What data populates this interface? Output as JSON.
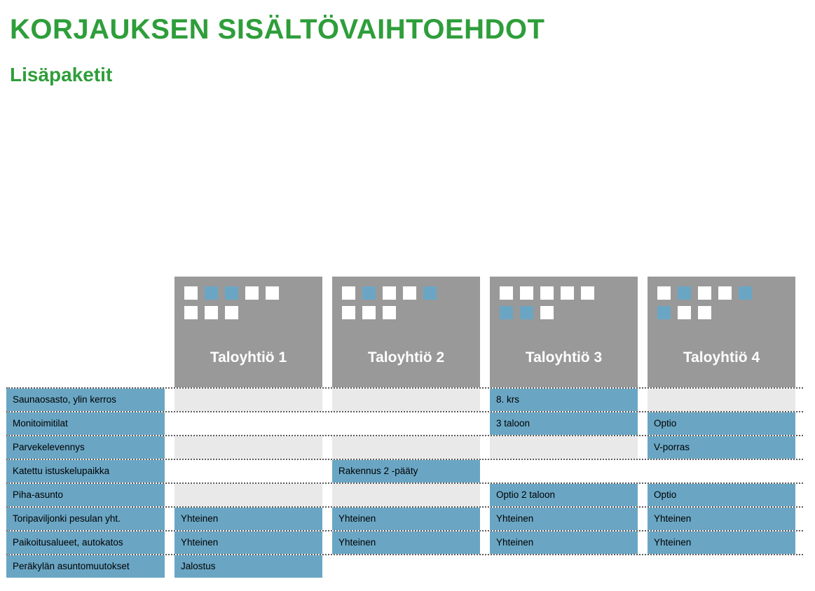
{
  "title": "KORJAUKSEN SISÄLTÖVAIHTOEHDOT",
  "subtitle": "Lisäpaketit",
  "colors": {
    "green": "#2e9e3a",
    "cellBlue": "#6aa6c4",
    "grayLight": "#e9e9e9",
    "headerGray": "#999999",
    "white": "#ffffff"
  },
  "columns": [
    {
      "label": "Taloyhtiö 1",
      "squares": {
        "r1": [
          "white",
          "blue",
          "blue",
          "white",
          "white"
        ],
        "r2": [
          "white",
          "white",
          "white"
        ]
      }
    },
    {
      "label": "Taloyhtiö 2",
      "squares": {
        "r1": [
          "white",
          "blue",
          "white",
          "white",
          "blue"
        ],
        "r2": [
          "white",
          "white",
          "white"
        ]
      }
    },
    {
      "label": "Taloyhtiö 3",
      "squares": {
        "r1": [
          "white",
          "white",
          "white",
          "white",
          "white"
        ],
        "r2": [
          "blue",
          "blue",
          "white"
        ]
      }
    },
    {
      "label": "Taloyhtiö 4",
      "squares": {
        "r1": [
          "white",
          "blue",
          "white",
          "white",
          "blue"
        ],
        "r2": [
          "blue",
          "white",
          "white"
        ]
      }
    }
  ],
  "rows": [
    {
      "bg": "gray",
      "label": "Saunaosasto, ylin kerros",
      "cells": [
        {
          "fill": false,
          "text": ""
        },
        {
          "fill": false,
          "text": ""
        },
        {
          "fill": true,
          "text": "8. krs"
        },
        {
          "fill": false,
          "text": ""
        }
      ]
    },
    {
      "bg": "white",
      "label": "Monitoimitilat",
      "cells": [
        {
          "fill": false,
          "text": ""
        },
        {
          "fill": false,
          "text": ""
        },
        {
          "fill": true,
          "text": "3 taloon"
        },
        {
          "fill": true,
          "text": "Optio"
        }
      ]
    },
    {
      "bg": "gray",
      "label": "Parvekelevennys",
      "cells": [
        {
          "fill": false,
          "text": ""
        },
        {
          "fill": false,
          "text": ""
        },
        {
          "fill": false,
          "text": ""
        },
        {
          "fill": true,
          "text": "V-porras"
        }
      ]
    },
    {
      "bg": "white",
      "label": "Katettu istuskelupaikka",
      "cells": [
        {
          "fill": false,
          "text": ""
        },
        {
          "fill": true,
          "text": "Rakennus 2  -pääty"
        },
        {
          "fill": false,
          "text": ""
        },
        {
          "fill": false,
          "text": ""
        }
      ]
    },
    {
      "bg": "gray",
      "label": "Piha-asunto",
      "cells": [
        {
          "fill": false,
          "text": ""
        },
        {
          "fill": false,
          "text": ""
        },
        {
          "fill": true,
          "text": "Optio 2 taloon"
        },
        {
          "fill": true,
          "text": "Optio"
        }
      ]
    },
    {
      "bg": "white",
      "label": "Toripaviljonki pesulan yht.",
      "cells": [
        {
          "fill": true,
          "text": "Yhteinen"
        },
        {
          "fill": true,
          "text": "Yhteinen"
        },
        {
          "fill": true,
          "text": "Yhteinen"
        },
        {
          "fill": true,
          "text": "Yhteinen"
        }
      ]
    },
    {
      "bg": "gray",
      "label": "Paikoitusalueet, autokatos",
      "cells": [
        {
          "fill": true,
          "text": "Yhteinen"
        },
        {
          "fill": true,
          "text": "Yhteinen"
        },
        {
          "fill": true,
          "text": "Yhteinen"
        },
        {
          "fill": true,
          "text": "Yhteinen"
        }
      ]
    },
    {
      "bg": "white",
      "label": "Peräkylän asuntomuutokset",
      "cells": [
        {
          "fill": true,
          "text": "Jalostus"
        },
        {
          "fill": false,
          "text": ""
        },
        {
          "fill": false,
          "text": ""
        },
        {
          "fill": false,
          "text": ""
        }
      ]
    }
  ],
  "dividers_after": [
    0,
    1,
    2,
    3,
    4,
    5,
    6
  ]
}
